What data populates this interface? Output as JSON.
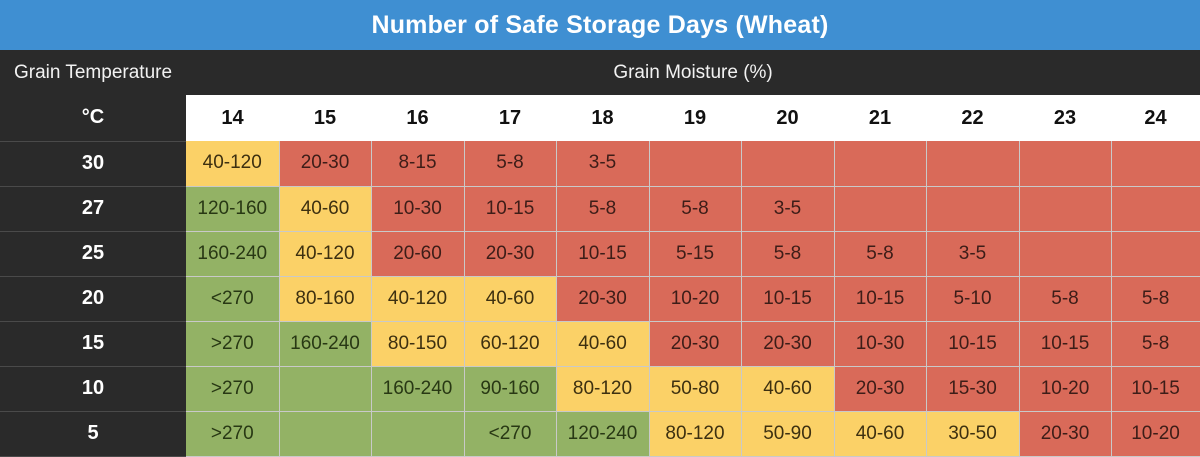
{
  "title": "Number of Safe Storage Days (Wheat)",
  "row_header": "Grain Temperature",
  "column_header": "Grain Moisture (%)",
  "unit_label": "°C",
  "colors": {
    "title_bg": "#3f8fd2",
    "header_bg": "#2a2a2a",
    "green": "#93b265",
    "yellow": "#fbd167",
    "red": "#d96a59"
  },
  "chart_data": {
    "type": "table",
    "title": "Number of Safe Storage Days (Wheat)",
    "row_axis_label": "Grain Temperature",
    "row_unit": "°C",
    "column_axis_label": "Grain Moisture (%)",
    "columns": [
      "14",
      "15",
      "16",
      "17",
      "18",
      "19",
      "20",
      "21",
      "22",
      "23",
      "24"
    ],
    "rows": [
      {
        "temp": "30",
        "values": [
          "40-120",
          "20-30",
          "8-15",
          "5-8",
          "3-5",
          "",
          "",
          "",
          "",
          "",
          ""
        ],
        "levels": [
          "yellow",
          "red",
          "red",
          "red",
          "red",
          "red",
          "red",
          "red",
          "red",
          "red",
          "red"
        ]
      },
      {
        "temp": "27",
        "values": [
          "120-160",
          "40-60",
          "10-30",
          "10-15",
          "5-8",
          "5-8",
          "3-5",
          "",
          "",
          "",
          ""
        ],
        "levels": [
          "green",
          "yellow",
          "red",
          "red",
          "red",
          "red",
          "red",
          "red",
          "red",
          "red",
          "red"
        ]
      },
      {
        "temp": "25",
        "values": [
          "160-240",
          "40-120",
          "20-60",
          "20-30",
          "10-15",
          "5-15",
          "5-8",
          "5-8",
          "3-5",
          "",
          ""
        ],
        "levels": [
          "green",
          "yellow",
          "red",
          "red",
          "red",
          "red",
          "red",
          "red",
          "red",
          "red",
          "red"
        ]
      },
      {
        "temp": "20",
        "values": [
          "<270",
          "80-160",
          "40-120",
          "40-60",
          "20-30",
          "10-20",
          "10-15",
          "10-15",
          "5-10",
          "5-8",
          "5-8"
        ],
        "levels": [
          "green",
          "yellow",
          "yellow",
          "yellow",
          "red",
          "red",
          "red",
          "red",
          "red",
          "red",
          "red"
        ]
      },
      {
        "temp": "15",
        "values": [
          ">270",
          "160-240",
          "80-150",
          "60-120",
          "40-60",
          "20-30",
          "20-30",
          "10-30",
          "10-15",
          "10-15",
          "5-8"
        ],
        "levels": [
          "green",
          "green",
          "yellow",
          "yellow",
          "yellow",
          "red",
          "red",
          "red",
          "red",
          "red",
          "red"
        ]
      },
      {
        "temp": "10",
        "values": [
          ">270",
          "",
          "160-240",
          "90-160",
          "80-120",
          "50-80",
          "40-60",
          "20-30",
          "15-30",
          "10-20",
          "10-15"
        ],
        "levels": [
          "green",
          "green",
          "green",
          "green",
          "yellow",
          "yellow",
          "yellow",
          "red",
          "red",
          "red",
          "red"
        ]
      },
      {
        "temp": "5",
        "values": [
          ">270",
          "",
          "",
          "<270",
          "120-240",
          "80-120",
          "50-90",
          "40-60",
          "30-50",
          "20-30",
          "10-20"
        ],
        "levels": [
          "green",
          "green",
          "green",
          "green",
          "green",
          "yellow",
          "yellow",
          "yellow",
          "yellow",
          "red",
          "red"
        ]
      }
    ]
  }
}
